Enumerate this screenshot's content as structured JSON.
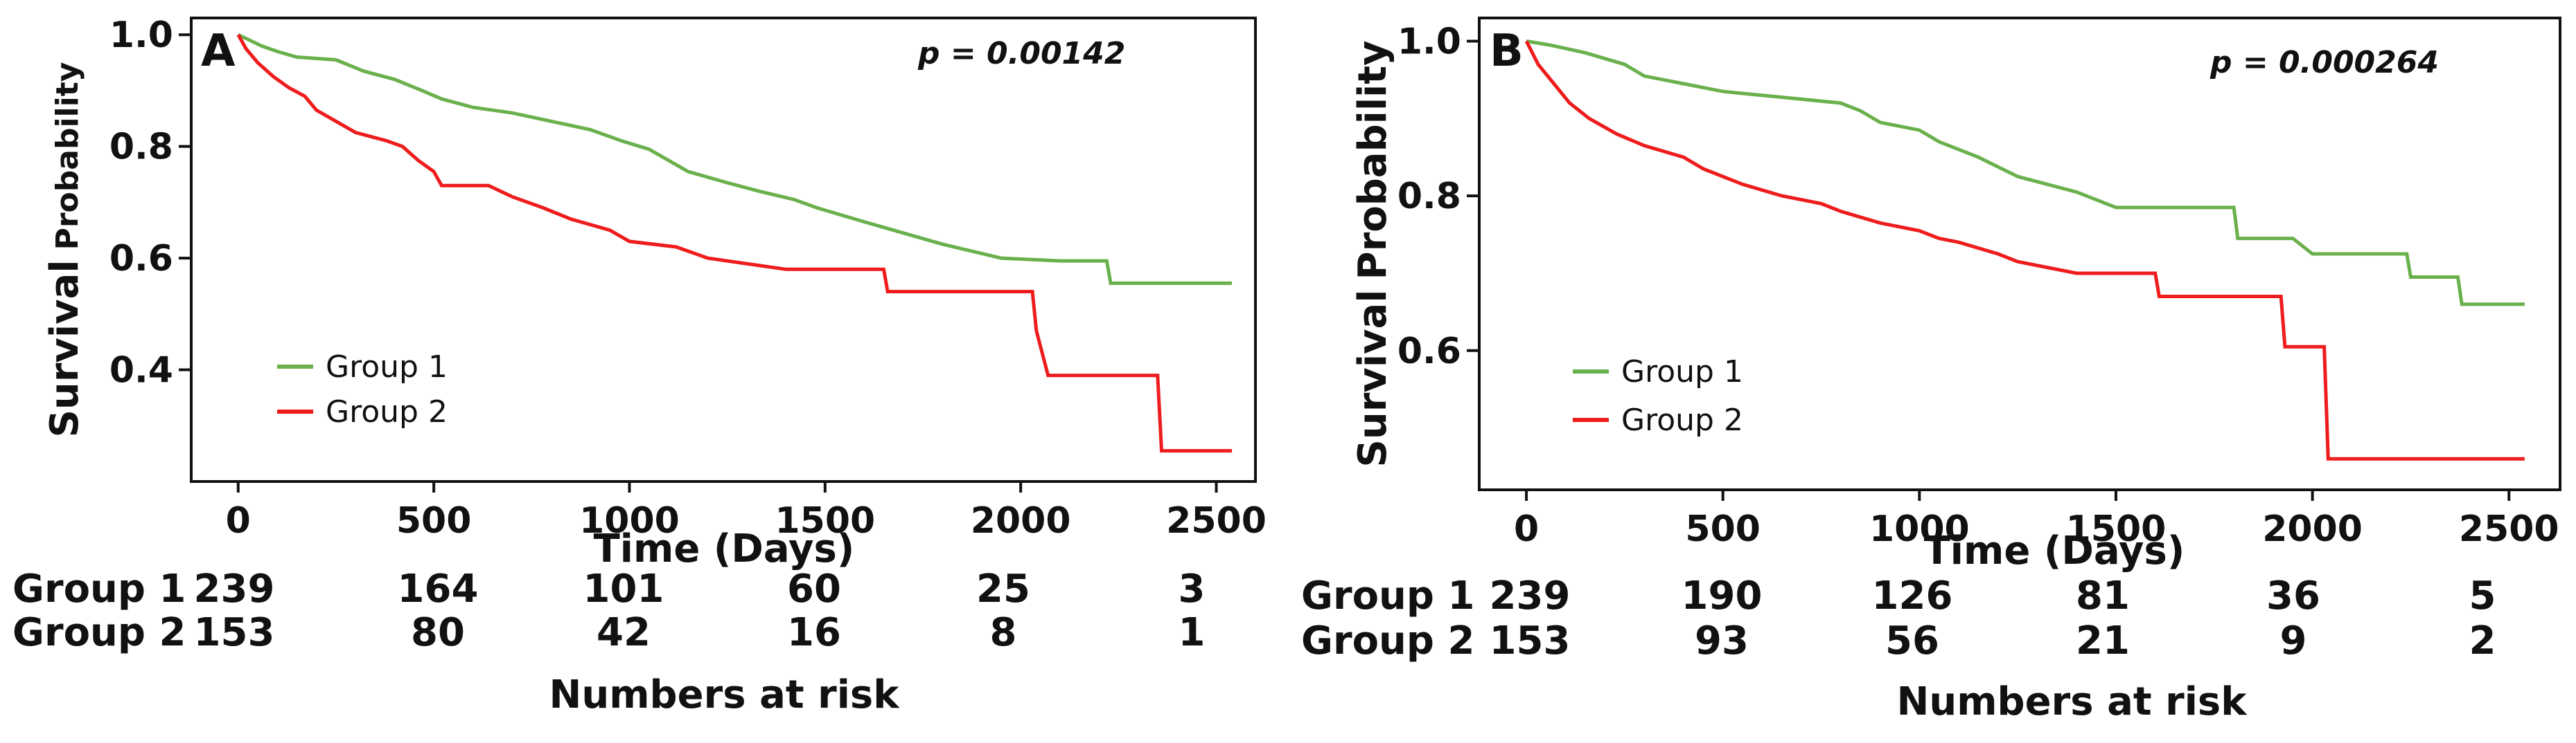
{
  "chart_data": [
    {
      "type": "line",
      "panel_label": "A",
      "p_value": "p = 0.00142",
      "xlabel": "Time (Days)",
      "ylabel_main": "Survival",
      "ylabel_small": "Probability",
      "xlim": [
        -120,
        2600
      ],
      "ylim": [
        0.2,
        1.03
      ],
      "xticks": [
        0,
        500,
        1000,
        1500,
        2000,
        2500
      ],
      "xtick_labels": [
        "0",
        "500",
        "1000",
        "1500",
        "2000",
        "2500"
      ],
      "yticks": [
        0.4,
        0.6,
        0.8,
        1.0
      ],
      "ytick_labels": [
        "0.4",
        "0.6",
        "0.8",
        "1.0"
      ],
      "legend": {
        "position": "lower-left",
        "entries": [
          "Group 1",
          "Group 2"
        ]
      },
      "series": [
        {
          "name": "Group 1",
          "color": "#6ab04c",
          "points": [
            [
              0,
              1.0
            ],
            [
              30,
              0.99
            ],
            [
              60,
              0.98
            ],
            [
              100,
              0.97
            ],
            [
              150,
              0.96
            ],
            [
              250,
              0.955
            ],
            [
              320,
              0.935
            ],
            [
              400,
              0.92
            ],
            [
              470,
              0.9
            ],
            [
              520,
              0.885
            ],
            [
              600,
              0.87
            ],
            [
              700,
              0.86
            ],
            [
              800,
              0.845
            ],
            [
              900,
              0.83
            ],
            [
              980,
              0.81
            ],
            [
              1050,
              0.795
            ],
            [
              1100,
              0.775
            ],
            [
              1150,
              0.755
            ],
            [
              1250,
              0.735
            ],
            [
              1330,
              0.72
            ],
            [
              1420,
              0.705
            ],
            [
              1480,
              0.69
            ],
            [
              1600,
              0.665
            ],
            [
              1700,
              0.645
            ],
            [
              1800,
              0.625
            ],
            [
              1950,
              0.6
            ],
            [
              2100,
              0.595
            ],
            [
              2220,
              0.595
            ],
            [
              2230,
              0.555
            ],
            [
              2540,
              0.555
            ]
          ]
        },
        {
          "name": "Group 2",
          "color": "#ee1c1c",
          "points": [
            [
              0,
              1.0
            ],
            [
              20,
              0.975
            ],
            [
              50,
              0.95
            ],
            [
              90,
              0.925
            ],
            [
              130,
              0.905
            ],
            [
              170,
              0.89
            ],
            [
              200,
              0.865
            ],
            [
              250,
              0.845
            ],
            [
              300,
              0.825
            ],
            [
              380,
              0.81
            ],
            [
              420,
              0.8
            ],
            [
              460,
              0.775
            ],
            [
              500,
              0.755
            ],
            [
              520,
              0.73
            ],
            [
              640,
              0.73
            ],
            [
              700,
              0.71
            ],
            [
              780,
              0.69
            ],
            [
              850,
              0.67
            ],
            [
              950,
              0.65
            ],
            [
              1000,
              0.63
            ],
            [
              1120,
              0.62
            ],
            [
              1200,
              0.6
            ],
            [
              1400,
              0.58
            ],
            [
              1650,
              0.58
            ],
            [
              1660,
              0.54
            ],
            [
              2030,
              0.54
            ],
            [
              2040,
              0.47
            ],
            [
              2070,
              0.39
            ],
            [
              2350,
              0.39
            ],
            [
              2360,
              0.255
            ],
            [
              2540,
              0.255
            ]
          ]
        }
      ],
      "risk_table": {
        "title": "Numbers at risk",
        "rows": [
          {
            "label": "Group 1",
            "values": [
              "239",
              "164",
              "101",
              "60",
              "25",
              "3"
            ]
          },
          {
            "label": "Group 2",
            "values": [
              "153",
              "80",
              "42",
              "16",
              "8",
              "1"
            ]
          }
        ]
      }
    },
    {
      "type": "line",
      "panel_label": "B",
      "p_value": "p = 0.000264",
      "xlabel": "Time (Days)",
      "ylabel_main": "Survival",
      "ylabel_small": "Probability",
      "xlim": [
        -120,
        2630
      ],
      "ylim": [
        0.42,
        1.03
      ],
      "xticks": [
        0,
        500,
        1000,
        1500,
        2000,
        2500
      ],
      "xtick_labels": [
        "0",
        "500",
        "1000",
        "1500",
        "2000",
        "2500"
      ],
      "yticks": [
        0.6,
        0.8,
        1.0
      ],
      "ytick_labels": [
        "0.6",
        "0.8",
        "1.0"
      ],
      "legend": {
        "position": "lower-left",
        "entries": [
          "Group 1",
          "Group 2"
        ]
      },
      "series": [
        {
          "name": "Group 1",
          "color": "#6ab04c",
          "points": [
            [
              0,
              1.0
            ],
            [
              60,
              0.995
            ],
            [
              150,
              0.985
            ],
            [
              250,
              0.97
            ],
            [
              300,
              0.955
            ],
            [
              400,
              0.945
            ],
            [
              500,
              0.935
            ],
            [
              600,
              0.93
            ],
            [
              700,
              0.925
            ],
            [
              800,
              0.92
            ],
            [
              850,
              0.91
            ],
            [
              900,
              0.895
            ],
            [
              1000,
              0.885
            ],
            [
              1050,
              0.87
            ],
            [
              1150,
              0.85
            ],
            [
              1250,
              0.825
            ],
            [
              1400,
              0.805
            ],
            [
              1500,
              0.785
            ],
            [
              1650,
              0.785
            ],
            [
              1800,
              0.785
            ],
            [
              1810,
              0.745
            ],
            [
              1950,
              0.745
            ],
            [
              2000,
              0.725
            ],
            [
              2240,
              0.725
            ],
            [
              2250,
              0.695
            ],
            [
              2370,
              0.695
            ],
            [
              2380,
              0.66
            ],
            [
              2540,
              0.66
            ]
          ]
        },
        {
          "name": "Group 2",
          "color": "#ee1c1c",
          "points": [
            [
              0,
              1.0
            ],
            [
              30,
              0.97
            ],
            [
              70,
              0.945
            ],
            [
              110,
              0.92
            ],
            [
              160,
              0.9
            ],
            [
              230,
              0.88
            ],
            [
              300,
              0.865
            ],
            [
              400,
              0.85
            ],
            [
              450,
              0.835
            ],
            [
              550,
              0.815
            ],
            [
              650,
              0.8
            ],
            [
              750,
              0.79
            ],
            [
              800,
              0.78
            ],
            [
              900,
              0.765
            ],
            [
              1000,
              0.755
            ],
            [
              1050,
              0.745
            ],
            [
              1100,
              0.74
            ],
            [
              1200,
              0.725
            ],
            [
              1250,
              0.715
            ],
            [
              1400,
              0.7
            ],
            [
              1600,
              0.7
            ],
            [
              1610,
              0.67
            ],
            [
              1920,
              0.67
            ],
            [
              1930,
              0.605
            ],
            [
              2030,
              0.605
            ],
            [
              2040,
              0.46
            ],
            [
              2540,
              0.46
            ]
          ]
        }
      ],
      "risk_table": {
        "title": "Numbers at risk",
        "rows": [
          {
            "label": "Group 1",
            "values": [
              "239",
              "190",
              "126",
              "81",
              "36",
              "5"
            ]
          },
          {
            "label": "Group 2",
            "values": [
              "153",
              "93",
              "56",
              "21",
              "9",
              "2"
            ]
          }
        ]
      }
    }
  ]
}
